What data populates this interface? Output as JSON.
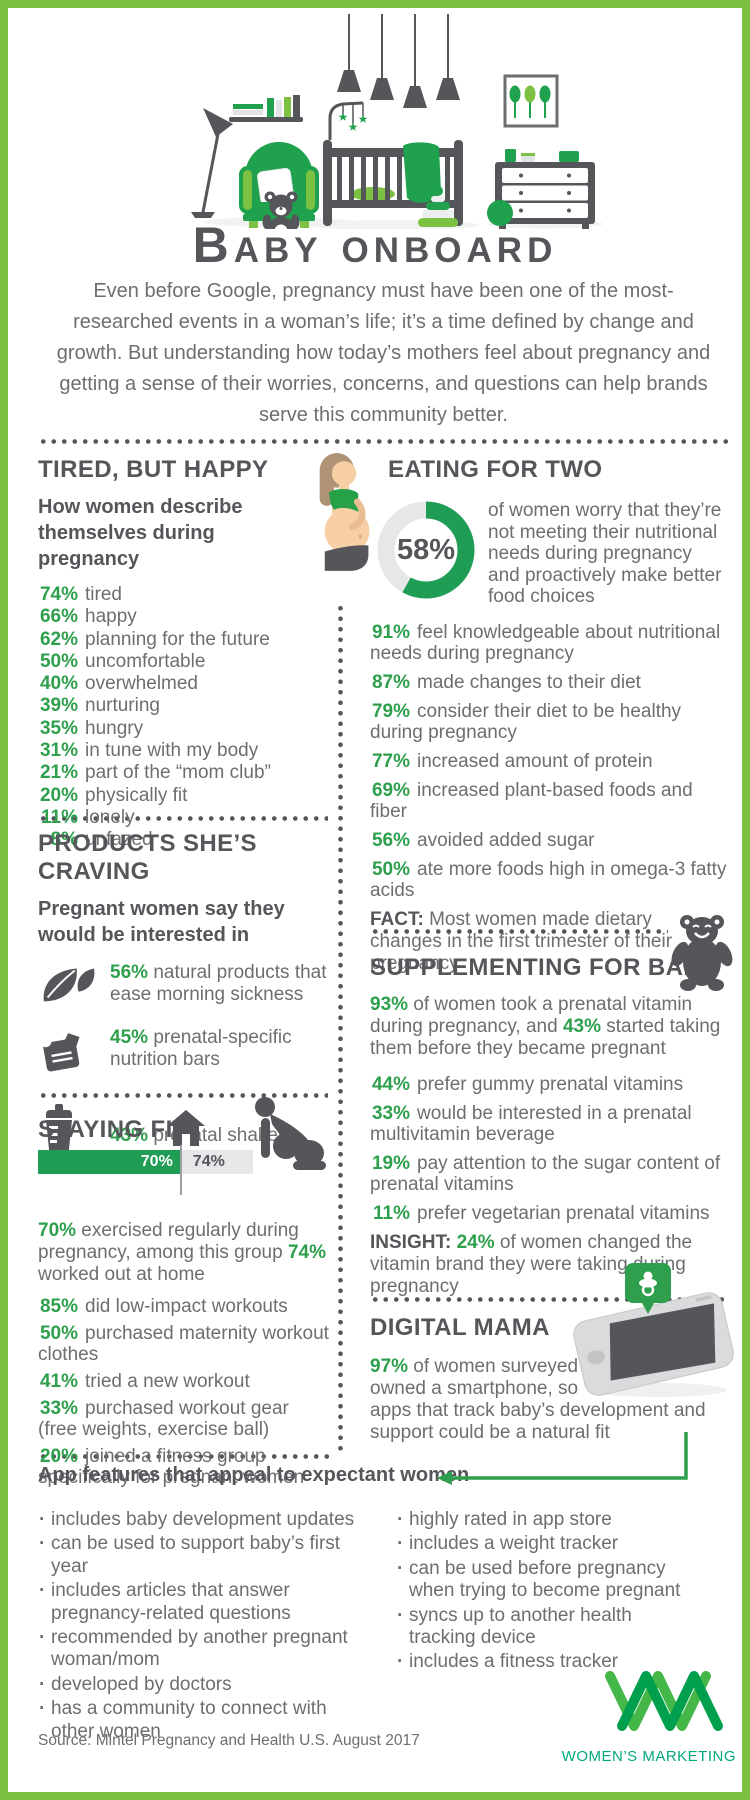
{
  "header": {
    "title": "Baby onboard",
    "intro": "Even before Google, pregnancy must have been one of the most-researched events in a woman’s life; it’s a time defined by change and growth. But understanding how today’s mothers feel about pregnancy and getting a sense of their worries, concerns, and questions can help brands serve this community better.",
    "illustration": "nursery-scene-illustration"
  },
  "colors": {
    "frame_green": "#7CC142",
    "accent_green": "#2E9F4C",
    "deep_green": "#1F9D55",
    "light_green": "#7CC142",
    "icon_gray": "#55565A",
    "head_gray": "#54565A",
    "body_gray": "#6D6E71",
    "light_gray": "#E6E7E8",
    "logo_light": "#45B749",
    "logo_dark": "#009F4D",
    "logo_text": "#00A87E"
  },
  "sections": {
    "tired": {
      "title": "TIRED, BUT HAPPY",
      "subtitle": "How women describe themselves during pregnancy",
      "icon": "pregnant-woman-illustration",
      "stats": [
        {
          "pct": "74%",
          "text": "tired"
        },
        {
          "pct": "66%",
          "text": "happy"
        },
        {
          "pct": "62%",
          "text": "planning for the future"
        },
        {
          "pct": "50%",
          "text": "uncomfortable"
        },
        {
          "pct": "40%",
          "text": "overwhelmed"
        },
        {
          "pct": "39%",
          "text": "nurturing"
        },
        {
          "pct": "35%",
          "text": "hungry"
        },
        {
          "pct": "31%",
          "text": "in tune with my body"
        },
        {
          "pct": "21%",
          "text": "part of the “mom club”"
        },
        {
          "pct": "20%",
          "text": "physically fit"
        },
        {
          "pct": "11%",
          "text": "lonely"
        },
        {
          "pct": "8%",
          "text": "unfazed"
        }
      ]
    },
    "eating": {
      "title": "EATING FOR TWO",
      "donut_label": "58%",
      "donut_text": "of women worry that they’re not meeting their nutritional needs during pregnancy and proactively make better food choices",
      "stats": [
        {
          "pct": "91%",
          "text": "feel knowledgeable about nutritional needs during pregnancy"
        },
        {
          "pct": "87%",
          "text": "made changes to their diet"
        },
        {
          "pct": "79%",
          "text": "consider their diet to be healthy during pregnancy"
        },
        {
          "pct": "77%",
          "text": "increased amount of protein"
        },
        {
          "pct": "69%",
          "text": "increased plant-based foods and fiber"
        },
        {
          "pct": "56%",
          "text": "avoided added sugar"
        },
        {
          "pct": "50%",
          "text": "ate more foods high in omega-3 fatty acids"
        }
      ],
      "fact": [
        {
          "t": "FACT: ",
          "c": "strong"
        },
        {
          "t": "Most women made dietary changes in the first trimester of their pregnancy"
        }
      ]
    },
    "products": {
      "title": "PRODUCTS SHE’S CRAVING",
      "subtitle": "Pregnant women say they would be interested in",
      "items": [
        {
          "pct": "56%",
          "text": "natural products that ease morning sickness",
          "icon": "leaf-icon"
        },
        {
          "pct": "45%",
          "text": "prenatal-specific nutrition bars",
          "icon": "nutrition-bar-icon"
        },
        {
          "pct": "43%",
          "text": "prenatal shakes",
          "icon": "shaker-bottle-icon"
        }
      ]
    },
    "fit": {
      "title": "STAYING FIT",
      "icons": [
        "house-icon",
        "pregnant-exercise-icon"
      ],
      "bar": {
        "green": "70%",
        "gray": "74%"
      },
      "lead": [
        {
          "t": "70%",
          "c": "pct"
        },
        {
          "t": " exercised regularly during pregnancy, among this group "
        },
        {
          "t": "74%",
          "c": "pct"
        },
        {
          "t": " worked out at home"
        }
      ],
      "stats": [
        {
          "pct": "85%",
          "text": "did low-impact workouts"
        },
        {
          "pct": "50%",
          "text": "purchased maternity workout clothes"
        },
        {
          "pct": "41%",
          "text": "tried a new workout"
        },
        {
          "pct": "33%",
          "text": "purchased workout gear (free weights, exercise ball)"
        },
        {
          "pct": "20%",
          "text": "joined a fitness group specifically for pregnant women"
        }
      ]
    },
    "supplementing": {
      "title": "SUPPLEMENTING FOR BABY",
      "icon": "gummy-bear-icon",
      "lead": [
        {
          "t": "93%",
          "c": "pct"
        },
        {
          "t": " of women took a prenatal vitamin during pregnancy, and "
        },
        {
          "t": "43%",
          "c": "pct"
        },
        {
          "t": " started taking them before they became pregnant"
        }
      ],
      "stats": [
        {
          "pct": "44%",
          "text": "prefer gummy prenatal vitamins"
        },
        {
          "pct": "33%",
          "text": "would be interested in a prenatal multivitamin beverage"
        },
        {
          "pct": "19%",
          "text": "pay attention to the sugar content of prenatal vitamins"
        },
        {
          "pct": "11%",
          "text": "prefer vegetarian prenatal vitamins"
        }
      ],
      "insight": [
        {
          "t": "INSIGHT: ",
          "c": "strong"
        },
        {
          "t": "24%",
          "c": "pct"
        },
        {
          "t": " of women changed the vitamin brand they were taking during pregnancy"
        }
      ]
    },
    "digital": {
      "title": "DIGITAL MAMA",
      "icons": [
        "pacifier-badge-icon",
        "smartphone-icon"
      ],
      "lead": [
        {
          "t": "97%",
          "c": "pct"
        },
        {
          "t": " of women surveyed owned a smartphone, so apps that track baby’s development and support could be a natural fit"
        }
      ]
    },
    "app_features": {
      "title": "App features that appeal to expectant women",
      "left": [
        "includes baby development updates",
        "can be used to support baby’s first year",
        "includes articles that answer pregnancy-related questions",
        "recommended by another pregnant woman/mom",
        "developed by doctors",
        "has a community to connect with other women"
      ],
      "right": [
        "highly rated in app store",
        "includes a weight tracker",
        "can be used before pregnancy when trying to become pregnant",
        "syncs up to another health tracking device",
        "includes a fitness tracker"
      ]
    }
  },
  "chart_data": [
    {
      "type": "pie",
      "variant": "donut",
      "title": "Eating for two",
      "labels": [
        "worry about nutritional needs and make better food choices",
        "other"
      ],
      "values": [
        58,
        42
      ],
      "center_label": "58%",
      "colors": [
        "#1F9D55",
        "#E6E7E8"
      ],
      "legend": false
    },
    {
      "type": "bar",
      "orientation": "horizontal",
      "title": "Staying fit",
      "categories": [
        "exercised regularly during pregnancy",
        "of exercisers worked out at home"
      ],
      "values": [
        70,
        74
      ],
      "labels": [
        "70%",
        "74%"
      ],
      "colors": [
        "#1F9D55",
        "#E6E7E8"
      ],
      "xlim": [
        0,
        100
      ],
      "grid": false
    }
  ],
  "footer": {
    "source": "Source: Mintel Pregnancy and Health U.S. August 2017",
    "logo_icon": "wm-zigzag-logo",
    "logo_text": "WOMEN’S MARKETING"
  }
}
